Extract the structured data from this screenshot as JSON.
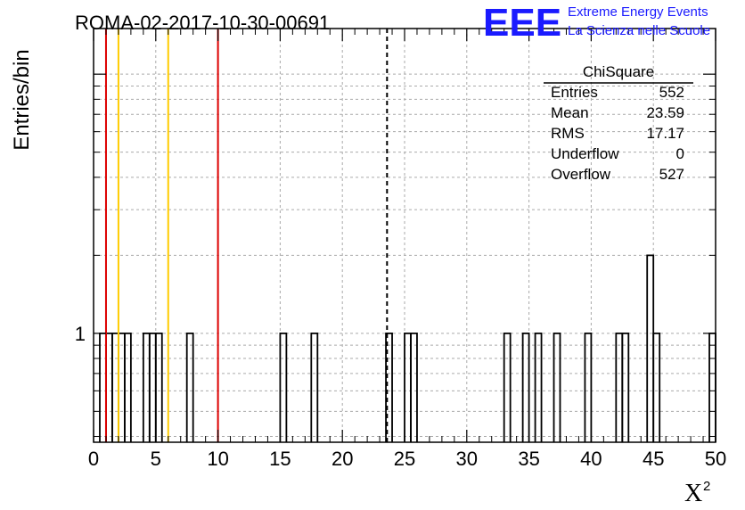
{
  "chart_data": {
    "type": "bar",
    "title": "ROMA-02-2017-10-30-00691",
    "xlabel": "X",
    "xlabel_superscript": "2",
    "ylabel": "Entries/bin",
    "xlim": [
      0,
      50
    ],
    "ylim_log": [
      0.38,
      15
    ],
    "log_y": true,
    "grid": true,
    "x_ticks": [
      "0",
      "5",
      "10",
      "15",
      "20",
      "25",
      "30",
      "35",
      "40",
      "45",
      "50"
    ],
    "y_tick_labels": [
      {
        "value": 1,
        "label": "1"
      }
    ],
    "bin_width": 0.5,
    "bins": [
      {
        "x": 0.5,
        "y": 1
      },
      {
        "x": 1.0,
        "y": 1
      },
      {
        "x": 1.5,
        "y": 1
      },
      {
        "x": 2.0,
        "y": 1
      },
      {
        "x": 2.5,
        "y": 1
      },
      {
        "x": 4.0,
        "y": 1
      },
      {
        "x": 4.5,
        "y": 1
      },
      {
        "x": 5.0,
        "y": 1
      },
      {
        "x": 7.5,
        "y": 1
      },
      {
        "x": 15.0,
        "y": 1
      },
      {
        "x": 17.5,
        "y": 1
      },
      {
        "x": 23.5,
        "y": 1
      },
      {
        "x": 25.0,
        "y": 1
      },
      {
        "x": 25.5,
        "y": 1
      },
      {
        "x": 33.0,
        "y": 1
      },
      {
        "x": 34.5,
        "y": 1
      },
      {
        "x": 35.5,
        "y": 1
      },
      {
        "x": 37.0,
        "y": 1
      },
      {
        "x": 39.5,
        "y": 1
      },
      {
        "x": 42.0,
        "y": 1
      },
      {
        "x": 42.5,
        "y": 1
      },
      {
        "x": 44.5,
        "y": 2
      },
      {
        "x": 45.0,
        "y": 1
      },
      {
        "x": 49.5,
        "y": 1
      }
    ],
    "mean_line": {
      "x": 23.59,
      "color": "#000000",
      "style": "dashed"
    },
    "vertical_lines": [
      {
        "x": 1,
        "color": "#dd0000"
      },
      {
        "x": 2,
        "color": "#ffcc00"
      },
      {
        "x": 6,
        "color": "#ffcc00"
      },
      {
        "x": 10,
        "color": "#dd0000"
      }
    ],
    "stats_box": {
      "title": "ChiSquare",
      "rows": [
        {
          "label": "Entries",
          "value": "552"
        },
        {
          "label": "Mean",
          "value": "23.59"
        },
        {
          "label": "RMS",
          "value": "17.17"
        },
        {
          "label": "Underflow",
          "value": "0"
        },
        {
          "label": "Overflow",
          "value": "527"
        }
      ]
    }
  },
  "logo": {
    "mark": "EEE",
    "line1": "Extreme Energy Events",
    "line2": "La Scienza nelle Scuole",
    "color": "#1a1aff"
  }
}
